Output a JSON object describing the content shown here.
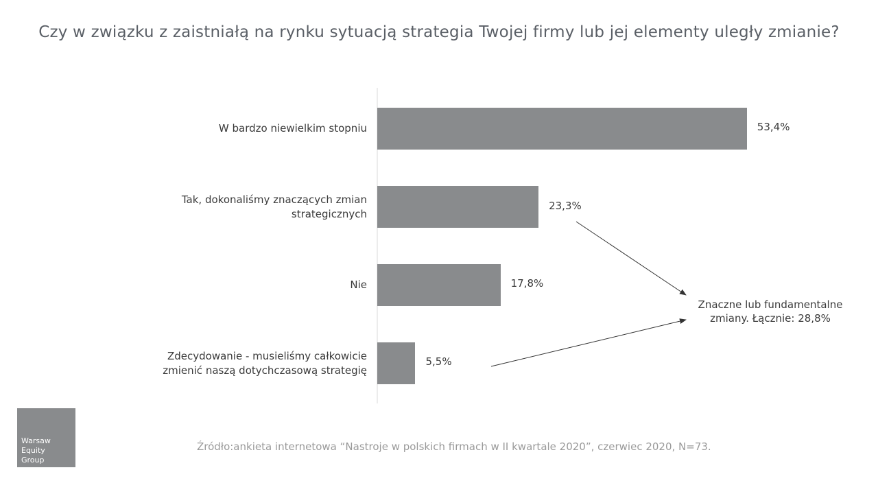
{
  "chart_data": {
    "type": "bar",
    "orientation": "horizontal",
    "title": "Czy w związku z zaistniałą na rynku sytuacją strategia Twojej firmy lub jej elementy uległy zmianie?",
    "categories": [
      "W bardzo niewielkim stopniu",
      "Tak, dokonaliśmy znaczących zmian strategicznych",
      "Nie",
      "Zdecydowanie - musieliśmy całkowicie zmienić naszą dotychczasową strategię"
    ],
    "values": [
      53.4,
      23.3,
      17.8,
      5.5
    ],
    "value_labels": [
      "53,4%",
      "23,3%",
      "17,8%",
      "5,5%"
    ],
    "color": "#898b8d",
    "annotation": "Znaczne lub fundamentalne zmiany. Łącznie: 28,8%",
    "source": "Źródło:ankieta internetowa “Nastroje w polskich firmach w II kwartale 2020”, czerwiec 2020, N=73."
  },
  "logo": [
    "Warsaw",
    "Equity",
    "Group"
  ]
}
